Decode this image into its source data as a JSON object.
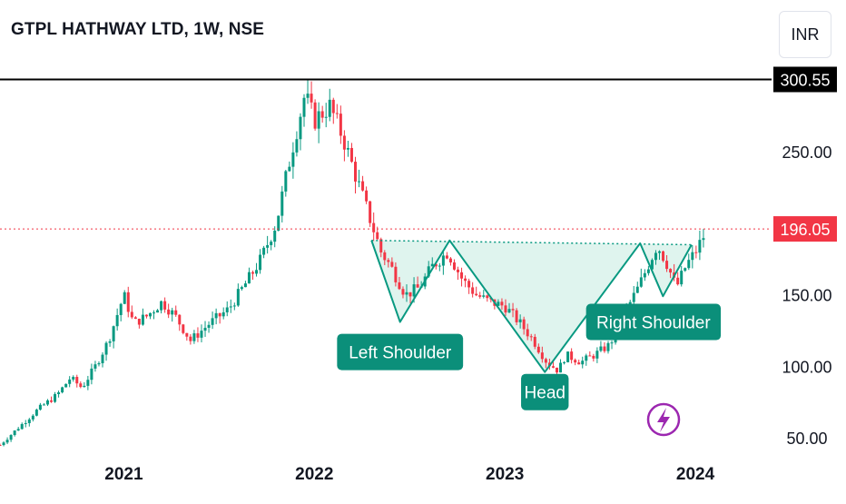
{
  "header": {
    "title": "GTPL HATHWAY LTD, 1W, NSE",
    "currency": "INR"
  },
  "colors": {
    "up": "#089981",
    "down": "#f23645",
    "pattern_fill": "#d4f0e8",
    "pattern_line": "#089981",
    "resistance": "#000000",
    "label_bg": "#0b8f7a",
    "lightning": "#9c27b0"
  },
  "chart_data": {
    "type": "candlestick",
    "timeframe": "1W",
    "y_axis": {
      "ticks": [
        50,
        100,
        150,
        250
      ],
      "tick_labels": [
        "50.00",
        "100.00",
        "150.00",
        "250.00"
      ],
      "range": [
        45,
        318
      ]
    },
    "x_axis": {
      "ticks": [
        2021,
        2022,
        2023,
        2024
      ],
      "tick_labels": [
        "2021",
        "2022",
        "2023",
        "2024"
      ],
      "range": [
        2020.35,
        2024.4
      ]
    },
    "resistance": {
      "value": 300.55,
      "label": "300.55"
    },
    "last_price": {
      "value": 196.05,
      "label": "196.05"
    },
    "price_path": [
      [
        2020.35,
        45
      ],
      [
        2020.55,
        70
      ],
      [
        2020.65,
        80
      ],
      [
        2020.72,
        92
      ],
      [
        2020.78,
        85
      ],
      [
        2020.85,
        100
      ],
      [
        2020.92,
        118
      ],
      [
        2021.0,
        150
      ],
      [
        2021.05,
        130
      ],
      [
        2021.12,
        135
      ],
      [
        2021.2,
        145
      ],
      [
        2021.27,
        135
      ],
      [
        2021.35,
        118
      ],
      [
        2021.45,
        130
      ],
      [
        2021.55,
        140
      ],
      [
        2021.6,
        150
      ],
      [
        2021.65,
        160
      ],
      [
        2021.72,
        175
      ],
      [
        2021.8,
        200
      ],
      [
        2021.88,
        250
      ],
      [
        2021.95,
        290
      ],
      [
        2022.0,
        272
      ],
      [
        2022.08,
        282
      ],
      [
        2022.15,
        260
      ],
      [
        2022.2,
        240
      ],
      [
        2022.27,
        212
      ],
      [
        2022.35,
        180
      ],
      [
        2022.4,
        170
      ],
      [
        2022.48,
        150
      ],
      [
        2022.55,
        155
      ],
      [
        2022.62,
        170
      ],
      [
        2022.7,
        180
      ],
      [
        2022.78,
        160
      ],
      [
        2022.85,
        150
      ],
      [
        2022.92,
        145
      ],
      [
        2023.0,
        142
      ],
      [
        2023.08,
        130
      ],
      [
        2023.15,
        118
      ],
      [
        2023.22,
        103
      ],
      [
        2023.28,
        97
      ],
      [
        2023.32,
        108
      ],
      [
        2023.4,
        103
      ],
      [
        2023.47,
        108
      ],
      [
        2023.55,
        115
      ],
      [
        2023.62,
        135
      ],
      [
        2023.7,
        155
      ],
      [
        2023.75,
        170
      ],
      [
        2023.8,
        185
      ],
      [
        2023.85,
        172
      ],
      [
        2023.9,
        155
      ],
      [
        2023.95,
        170
      ],
      [
        2024.0,
        180
      ],
      [
        2024.04,
        190
      ],
      [
        2024.06,
        196.05
      ]
    ],
    "pattern": {
      "points": [
        {
          "x": 2022.3,
          "y": 188
        },
        {
          "x": 2022.45,
          "y": 131
        },
        {
          "x": 2022.71,
          "y": 188
        },
        {
          "x": 2023.21,
          "y": 96
        },
        {
          "x": 2023.71,
          "y": 186
        },
        {
          "x": 2023.83,
          "y": 149
        },
        {
          "x": 2023.98,
          "y": 185
        }
      ],
      "labels": [
        {
          "text": "Left Shoulder",
          "x": 2022.45,
          "y": 110
        },
        {
          "text": "Head",
          "x": 2023.21,
          "y": 82
        },
        {
          "text": "Right Shoulder",
          "x": 2023.78,
          "y": 131
        }
      ]
    }
  }
}
